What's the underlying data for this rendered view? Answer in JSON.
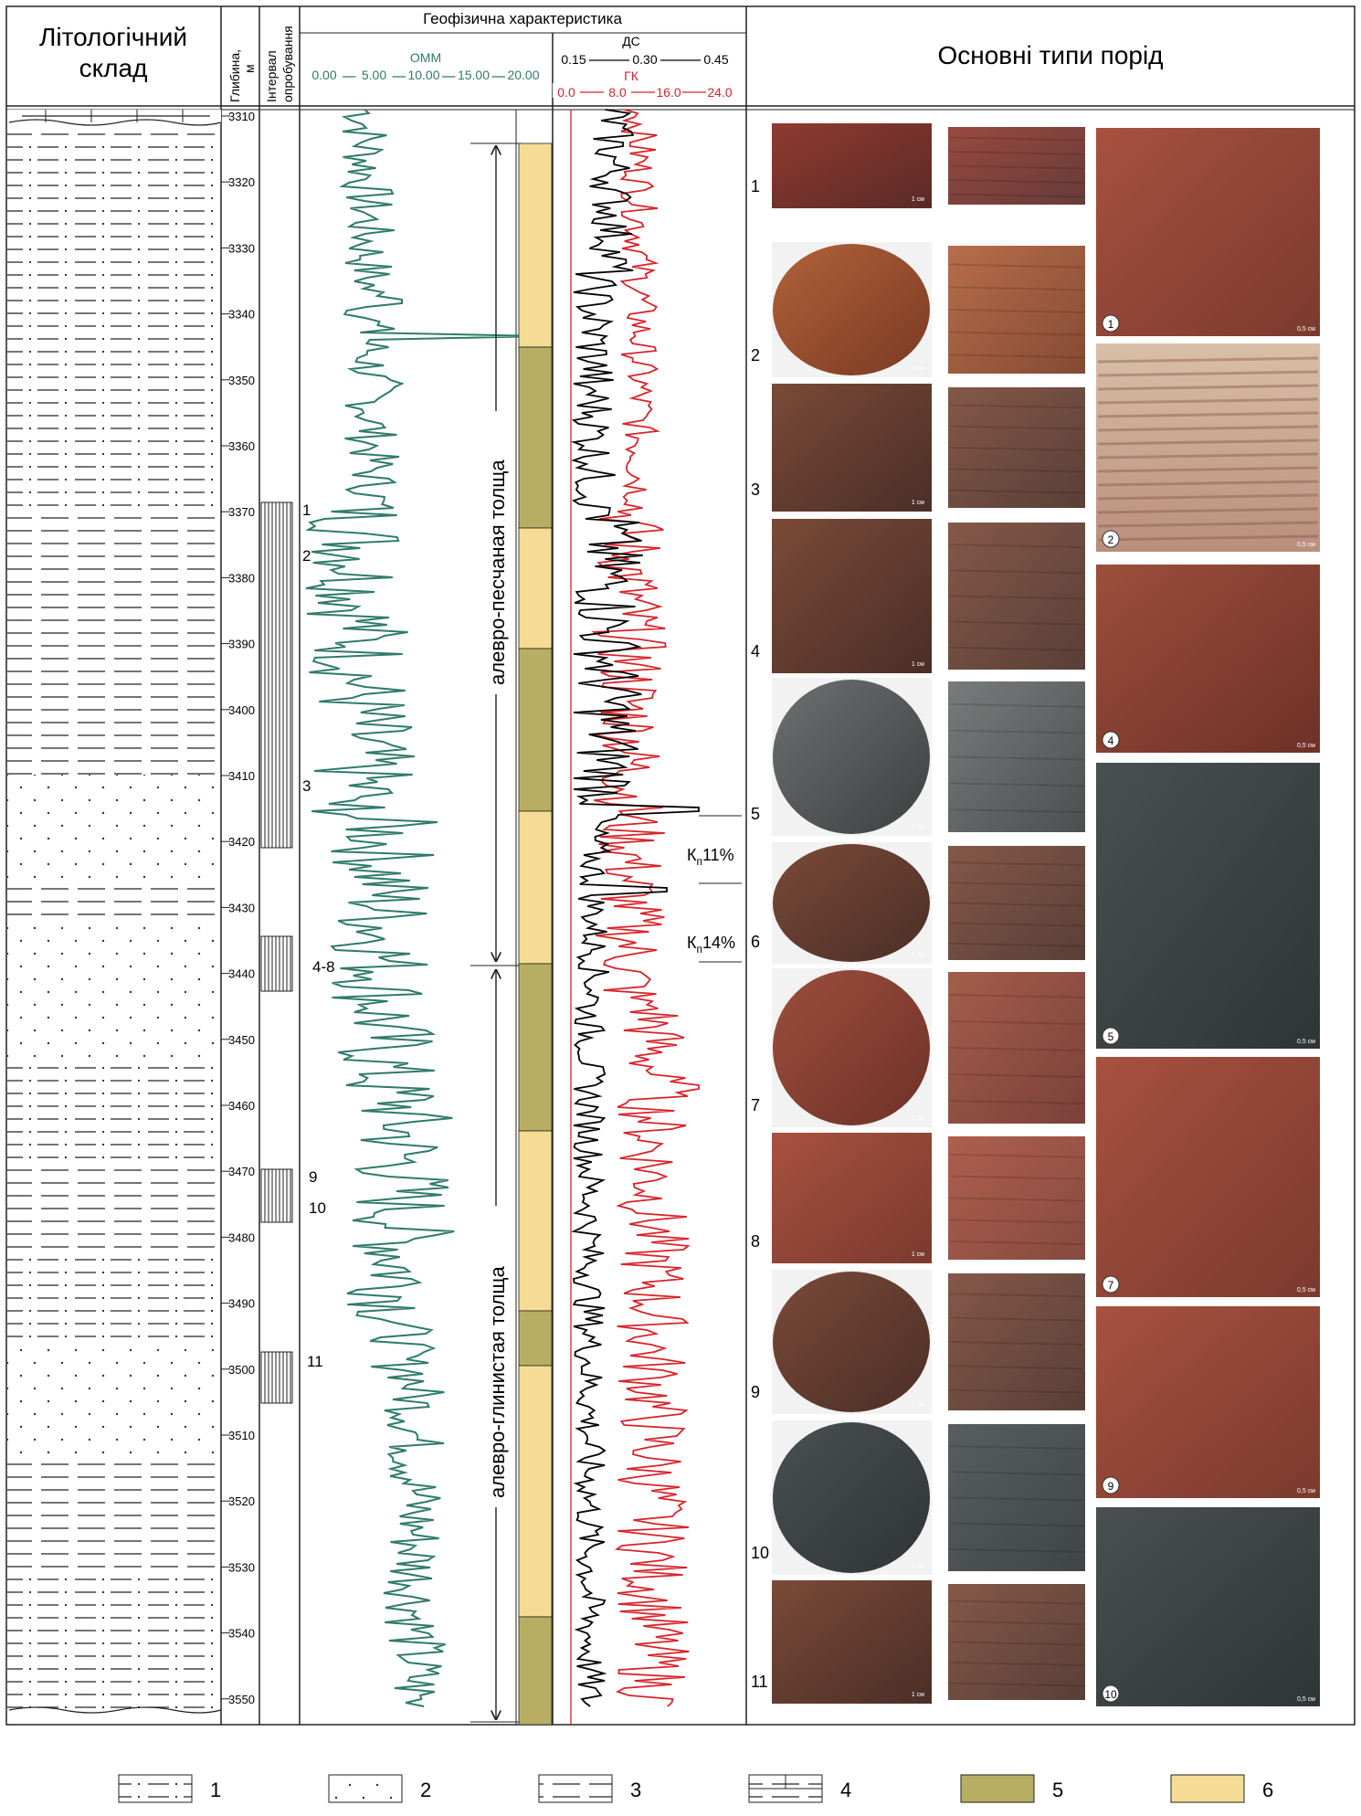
{
  "headers": {
    "lithology": [
      "Літологічний",
      "склад"
    ],
    "depth": [
      "Глибина,",
      "м"
    ],
    "interval": [
      "Інтервал",
      "опробування"
    ],
    "geophys": "Геофізична характеристика",
    "rock_types": "Основні типи порід"
  },
  "omm": {
    "label": "ОММ",
    "ticks": [
      "0.00",
      "5.00",
      "10.00",
      "15.00",
      "20.00"
    ],
    "color": "#2f7a6b"
  },
  "ds": {
    "label": "ДС",
    "ticks": [
      "0.15",
      "0.30",
      "0.45"
    ],
    "color": "#000000"
  },
  "gk": {
    "label": "ГК",
    "ticks": [
      "0.0",
      "8.0",
      "16.0",
      "24.0"
    ],
    "color": "#d8232a"
  },
  "depth_ticks": [
    "3310",
    "3320",
    "3330",
    "3340",
    "3350",
    "3360",
    "3370",
    "3380",
    "3390",
    "3400",
    "3410",
    "3420",
    "3430",
    "3440",
    "3450",
    "3460",
    "3470",
    "3480",
    "3490",
    "3500",
    "3510",
    "3520",
    "3530",
    "3540",
    "3550"
  ],
  "sample_labels": [
    "1",
    "2",
    "3",
    "4-8",
    "9",
    "10",
    "11"
  ],
  "strata": {
    "upper": "алевро-песчаная толща",
    "lower": "алевро-глинистая толща"
  },
  "porosity": [
    "11%",
    "14%"
  ],
  "porosity_symbol": "К",
  "porosity_sub": "п",
  "photo_numbers": [
    "1",
    "2",
    "3",
    "4",
    "5",
    "6",
    "7",
    "8",
    "9",
    "10",
    "11"
  ],
  "thin_section_numbers": [
    "1",
    "2",
    "4",
    "5",
    "7",
    "9",
    "10"
  ],
  "scale_small": "1 см",
  "scale_thin": "0,5 см",
  "legend": [
    "1",
    "2",
    "3",
    "4",
    "5",
    "6"
  ],
  "colors": {
    "olive": "#b8ae63",
    "sand": "#f5dc94",
    "omm": "#2f7a6b",
    "gk": "#d8232a"
  }
}
